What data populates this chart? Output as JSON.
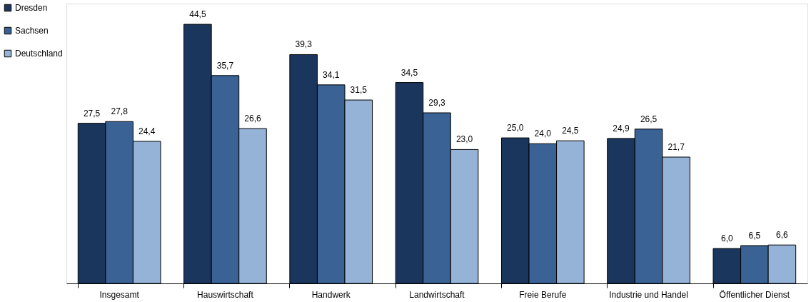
{
  "chart_data": {
    "type": "bar",
    "categories": [
      "Insgesamt",
      "Hauswirtschaft",
      "Handwerk",
      "Landwirtschaft",
      "Freie Berufe",
      "Industrie und Handel",
      "Öffentlicher Dienst"
    ],
    "series": [
      {
        "name": "Dresden",
        "color": "#1b365d",
        "values": [
          27.5,
          44.5,
          39.3,
          34.5,
          25.0,
          24.9,
          6.0
        ],
        "value_labels": [
          "27,5",
          "44,5",
          "39,3",
          "34,5",
          "25,0",
          "24,9",
          "6,0"
        ]
      },
      {
        "name": "Sachsen",
        "color": "#3a6294",
        "values": [
          27.8,
          35.7,
          34.1,
          29.3,
          24.0,
          26.5,
          6.5
        ],
        "value_labels": [
          "27,8",
          "35,7",
          "34,1",
          "29,3",
          "24,0",
          "26,5",
          "6,5"
        ]
      },
      {
        "name": "Deutschland",
        "color": "#95b3d7",
        "values": [
          24.4,
          26.6,
          31.5,
          23.0,
          24.5,
          21.7,
          6.6
        ],
        "value_labels": [
          "24,4",
          "26,6",
          "31,5",
          "23,0",
          "24,5",
          "21,7",
          "6,6"
        ]
      }
    ],
    "legend": "left",
    "grid": false
  }
}
